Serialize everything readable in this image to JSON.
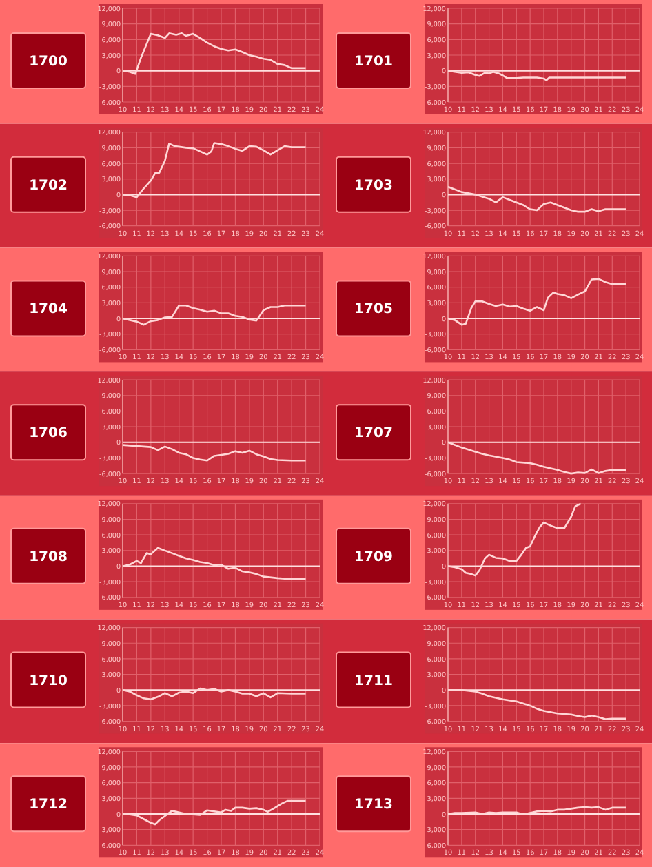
{
  "chart_data": [
    {
      "type": "line",
      "title": "1700",
      "xlim": [
        10,
        24
      ],
      "xticks": [
        10,
        11,
        12,
        13,
        14,
        15,
        16,
        17,
        18,
        19,
        20,
        21,
        22,
        23,
        24
      ],
      "ylim": [
        -6000,
        12000
      ],
      "yticks": [
        {
          "value": -6000,
          "label": "-6,000"
        },
        {
          "value": -3000,
          "label": "-3,000"
        },
        {
          "value": 0,
          "label": "0"
        },
        {
          "value": 3000,
          "label": "3,000"
        },
        {
          "value": 6000,
          "label": "6,000"
        },
        {
          "value": 9000,
          "label": "9,000"
        },
        {
          "value": 12000,
          "label": "12,000"
        }
      ],
      "grid": true,
      "ref_lines": [
        {
          "axis": "y",
          "value": 0,
          "color": "#ffe0e0"
        }
      ],
      "series": [
        {
          "color": "#ffd6d6",
          "x": [
            10,
            10.5,
            10.9,
            11.3,
            12,
            12.5,
            13,
            13.3,
            13.8,
            14.2,
            14.5,
            15,
            15.5,
            16,
            16.5,
            17,
            17.5,
            18,
            18.5,
            19,
            19.5,
            20,
            20.5,
            21,
            21.5,
            22,
            23
          ],
          "values": [
            0,
            -200,
            -600,
            2500,
            7100,
            6800,
            6300,
            7200,
            6900,
            7200,
            6700,
            7100,
            6300,
            5400,
            4700,
            4200,
            3900,
            4100,
            3600,
            3000,
            2700,
            2300,
            2100,
            1300,
            1100,
            500,
            500
          ]
        }
      ]
    },
    {
      "type": "line",
      "title": "1701",
      "xlim": [
        10,
        24
      ],
      "xticks": [
        10,
        11,
        12,
        13,
        14,
        15,
        16,
        17,
        18,
        19,
        20,
        21,
        22,
        23,
        24
      ],
      "ylim": [
        -6000,
        12000
      ],
      "yticks": [
        {
          "value": -6000,
          "label": "-6,000"
        },
        {
          "value": -3000,
          "label": "-3,000"
        },
        {
          "value": 0,
          "label": "0"
        },
        {
          "value": 3000,
          "label": "3,000"
        },
        {
          "value": 6000,
          "label": "6,000"
        },
        {
          "value": 9000,
          "label": "9,000"
        },
        {
          "value": 12000,
          "label": "12,000"
        }
      ],
      "grid": true,
      "ref_lines": [
        {
          "axis": "y",
          "value": 0,
          "color": "#ffe0e0"
        }
      ],
      "series": [
        {
          "color": "#ffd6d6",
          "x": [
            10,
            10.5,
            11,
            11.5,
            12,
            12.3,
            12.7,
            13,
            13.3,
            13.7,
            14,
            14.3,
            15,
            15.5,
            16,
            16.5,
            17,
            17.2,
            17.4,
            18,
            23
          ],
          "values": [
            0,
            -200,
            -400,
            -300,
            -800,
            -1000,
            -400,
            -500,
            -200,
            -500,
            -900,
            -1400,
            -1400,
            -1300,
            -1300,
            -1300,
            -1500,
            -1800,
            -1300,
            -1300,
            -1300
          ]
        }
      ]
    },
    {
      "type": "line",
      "title": "1702",
      "xlim": [
        10,
        24
      ],
      "xticks": [
        10,
        11,
        12,
        13,
        14,
        15,
        16,
        17,
        18,
        19,
        20,
        21,
        22,
        23,
        24
      ],
      "ylim": [
        -6000,
        12000
      ],
      "yticks": [
        {
          "value": -6000,
          "label": "-6,000"
        },
        {
          "value": -3000,
          "label": "-3,000"
        },
        {
          "value": 0,
          "label": "0"
        },
        {
          "value": 3000,
          "label": "3,000"
        },
        {
          "value": 6000,
          "label": "6,000"
        },
        {
          "value": 9000,
          "label": "9,000"
        },
        {
          "value": 12000,
          "label": "12,000"
        }
      ],
      "grid": true,
      "ref_lines": [
        {
          "axis": "y",
          "value": 0,
          "color": "#ffe0e0"
        }
      ],
      "series": [
        {
          "color": "#ffd6d6",
          "x": [
            10,
            10.5,
            11,
            11.5,
            12,
            12.3,
            12.6,
            13,
            13.3,
            13.7,
            14,
            14.5,
            15,
            15.5,
            16,
            16.3,
            16.5,
            17,
            17.5,
            18,
            18.5,
            19,
            19.5,
            20,
            20.5,
            21,
            21.5,
            22,
            23
          ],
          "values": [
            0,
            -100,
            -500,
            1200,
            2700,
            4100,
            4200,
            6500,
            9800,
            9300,
            9200,
            9000,
            8900,
            8300,
            7700,
            8300,
            9900,
            9700,
            9300,
            8800,
            8400,
            9300,
            9200,
            8500,
            7700,
            8500,
            9300,
            9100,
            9100
          ]
        }
      ]
    },
    {
      "type": "line",
      "title": "1703",
      "xlim": [
        10,
        24
      ],
      "xticks": [
        10,
        11,
        12,
        13,
        14,
        15,
        16,
        17,
        18,
        19,
        20,
        21,
        22,
        23,
        24
      ],
      "ylim": [
        -6000,
        12000
      ],
      "yticks": [
        {
          "value": -6000,
          "label": "-6,000"
        },
        {
          "value": -3000,
          "label": "-3,000"
        },
        {
          "value": 0,
          "label": "0"
        },
        {
          "value": 3000,
          "label": "3,000"
        },
        {
          "value": 6000,
          "label": "6,000"
        },
        {
          "value": 9000,
          "label": "9,000"
        },
        {
          "value": 12000,
          "label": "12,000"
        }
      ],
      "grid": true,
      "ref_lines": [
        {
          "axis": "y",
          "value": 0,
          "color": "#ffe0e0"
        }
      ],
      "series": [
        {
          "color": "#ffd6d6",
          "x": [
            10,
            11,
            12,
            13,
            13.5,
            14,
            14.5,
            15,
            15.5,
            16,
            16.5,
            17,
            17.5,
            18,
            18.5,
            19,
            19.5,
            20,
            20.5,
            21,
            21.5,
            22,
            23
          ],
          "values": [
            1500,
            500,
            0,
            -800,
            -1500,
            -500,
            -1000,
            -1500,
            -2000,
            -2800,
            -3000,
            -1800,
            -1500,
            -2000,
            -2500,
            -3000,
            -3300,
            -3300,
            -2800,
            -3200,
            -2800,
            -2800,
            -2800
          ]
        }
      ]
    },
    {
      "type": "line",
      "title": "1704",
      "xlim": [
        10,
        24
      ],
      "xticks": [
        10,
        11,
        12,
        13,
        14,
        15,
        16,
        17,
        18,
        19,
        20,
        21,
        22,
        23,
        24
      ],
      "ylim": [
        -6000,
        12000
      ],
      "yticks": [
        {
          "value": -6000,
          "label": "-6,000"
        },
        {
          "value": -3000,
          "label": "-3,000"
        },
        {
          "value": 0,
          "label": "0"
        },
        {
          "value": 3000,
          "label": "3,000"
        },
        {
          "value": 6000,
          "label": "6,000"
        },
        {
          "value": 9000,
          "label": "9,000"
        },
        {
          "value": 12000,
          "label": "12,000"
        }
      ],
      "grid": true,
      "ref_lines": [
        {
          "axis": "y",
          "value": 0,
          "color": "#ffe0e0"
        }
      ],
      "series": [
        {
          "color": "#ffd6d6",
          "x": [
            10,
            11,
            11.5,
            12,
            12.5,
            13,
            13.5,
            14,
            14.5,
            15,
            15.5,
            16,
            16.5,
            17,
            17.5,
            18,
            18.5,
            19,
            19.5,
            20,
            20.5,
            21,
            21.5,
            22,
            23
          ],
          "values": [
            0,
            -600,
            -1200,
            -500,
            -300,
            200,
            300,
            2500,
            2500,
            2000,
            1700,
            1300,
            1500,
            1000,
            1000,
            500,
            300,
            -200,
            -400,
            1600,
            2200,
            2200,
            2500,
            2500,
            2500
          ]
        }
      ]
    },
    {
      "type": "line",
      "title": "1705",
      "xlim": [
        10,
        24
      ],
      "xticks": [
        10,
        11,
        12,
        13,
        14,
        15,
        16,
        17,
        18,
        19,
        20,
        21,
        22,
        23,
        24
      ],
      "ylim": [
        -6000,
        12000
      ],
      "yticks": [
        {
          "value": -6000,
          "label": "-6,000"
        },
        {
          "value": -3000,
          "label": "-3,000"
        },
        {
          "value": 0,
          "label": "0"
        },
        {
          "value": 3000,
          "label": "3,000"
        },
        {
          "value": 6000,
          "label": "6,000"
        },
        {
          "value": 9000,
          "label": "9,000"
        },
        {
          "value": 12000,
          "label": "12,000"
        }
      ],
      "grid": true,
      "ref_lines": [
        {
          "axis": "y",
          "value": 0,
          "color": "#ffe0e0"
        }
      ],
      "series": [
        {
          "color": "#ffd6d6",
          "x": [
            10,
            10.5,
            11,
            11.3,
            11.7,
            12,
            12.5,
            13,
            13.5,
            14,
            14.5,
            15,
            15.5,
            16,
            16.5,
            17,
            17.3,
            17.7,
            18,
            18.5,
            19,
            19.5,
            20,
            20.5,
            21,
            21.5,
            22,
            23
          ],
          "values": [
            0,
            -300,
            -1200,
            -1000,
            2000,
            3300,
            3300,
            2800,
            2400,
            2700,
            2300,
            2400,
            1900,
            1500,
            2200,
            1600,
            4000,
            5000,
            4700,
            4500,
            3900,
            4600,
            5200,
            7500,
            7600,
            7000,
            6600,
            6600
          ]
        }
      ]
    },
    {
      "type": "line",
      "title": "1706",
      "xlim": [
        10,
        24
      ],
      "xticks": [
        10,
        11,
        12,
        13,
        14,
        15,
        16,
        17,
        18,
        19,
        20,
        21,
        22,
        23,
        24
      ],
      "ylim": [
        -6000,
        12000
      ],
      "yticks": [
        {
          "value": -6000,
          "label": "-6,000"
        },
        {
          "value": -3000,
          "label": "-3,000"
        },
        {
          "value": 0,
          "label": "0"
        },
        {
          "value": 3000,
          "label": "3,000"
        },
        {
          "value": 6000,
          "label": "6,000"
        },
        {
          "value": 9000,
          "label": "9,000"
        },
        {
          "value": 12000,
          "label": "12,000"
        }
      ],
      "grid": true,
      "ref_lines": [
        {
          "axis": "y",
          "value": 0,
          "color": "#ffe0e0"
        }
      ],
      "series": [
        {
          "color": "#ffd6d6",
          "x": [
            10,
            11,
            12,
            12.5,
            13,
            13.5,
            14,
            14.5,
            15,
            15.5,
            16,
            16.5,
            17,
            17.5,
            18,
            18.5,
            19,
            19.5,
            20,
            20.5,
            21,
            22,
            23
          ],
          "values": [
            -500,
            -700,
            -900,
            -1500,
            -800,
            -1300,
            -2000,
            -2300,
            -3000,
            -3300,
            -3500,
            -2600,
            -2400,
            -2200,
            -1700,
            -2000,
            -1600,
            -2300,
            -2700,
            -3200,
            -3400,
            -3500,
            -3500
          ]
        }
      ]
    },
    {
      "type": "line",
      "title": "1707",
      "xlim": [
        10,
        24
      ],
      "xticks": [
        10,
        11,
        12,
        13,
        14,
        15,
        16,
        17,
        18,
        19,
        20,
        21,
        22,
        23,
        24
      ],
      "ylim": [
        -6000,
        12000
      ],
      "yticks": [
        {
          "value": -6000,
          "label": "-6,000"
        },
        {
          "value": -3000,
          "label": "-3,000"
        },
        {
          "value": 0,
          "label": "0"
        },
        {
          "value": 3000,
          "label": "3,000"
        },
        {
          "value": 6000,
          "label": "6,000"
        },
        {
          "value": 9000,
          "label": "9,000"
        },
        {
          "value": 12000,
          "label": "12,000"
        }
      ],
      "grid": true,
      "ref_lines": [
        {
          "axis": "y",
          "value": 0,
          "color": "#ffe0e0"
        }
      ],
      "series": [
        {
          "color": "#ffd6d6",
          "x": [
            10,
            11,
            12,
            12.5,
            13,
            14,
            14.5,
            15,
            16,
            16.5,
            17,
            17.5,
            18,
            18.5,
            19,
            19.5,
            20,
            20.5,
            21,
            21.5,
            22,
            23
          ],
          "values": [
            0,
            -1000,
            -1800,
            -2200,
            -2500,
            -3000,
            -3300,
            -3800,
            -4000,
            -4300,
            -4700,
            -5000,
            -5300,
            -5700,
            -6000,
            -5800,
            -5900,
            -5200,
            -5900,
            -5500,
            -5300,
            -5300
          ]
        }
      ]
    },
    {
      "type": "line",
      "title": "1708",
      "xlim": [
        10,
        24
      ],
      "xticks": [
        10,
        11,
        12,
        13,
        14,
        15,
        16,
        17,
        18,
        19,
        20,
        21,
        22,
        23,
        24
      ],
      "ylim": [
        -6000,
        12000
      ],
      "yticks": [
        {
          "value": -6000,
          "label": "-6,000"
        },
        {
          "value": -3000,
          "label": "-3,000"
        },
        {
          "value": 0,
          "label": "0"
        },
        {
          "value": 3000,
          "label": "3,000"
        },
        {
          "value": 6000,
          "label": "6,000"
        },
        {
          "value": 9000,
          "label": "9,000"
        },
        {
          "value": 12000,
          "label": "12,000"
        }
      ],
      "grid": true,
      "ref_lines": [
        {
          "axis": "y",
          "value": 0,
          "color": "#ffe0e0"
        }
      ],
      "series": [
        {
          "color": "#ffd6d6",
          "x": [
            10,
            10.5,
            11,
            11.3,
            11.7,
            12,
            12.5,
            13,
            13.5,
            14,
            14.5,
            15,
            15.5,
            16,
            16.5,
            17,
            17.5,
            18,
            18.5,
            19,
            19.5,
            20,
            21,
            22,
            23
          ],
          "values": [
            0,
            300,
            1000,
            600,
            2500,
            2300,
            3500,
            3000,
            2500,
            2000,
            1500,
            1200,
            800,
            600,
            200,
            300,
            -500,
            -300,
            -1000,
            -1200,
            -1500,
            -2000,
            -2300,
            -2500,
            -2500
          ]
        }
      ]
    },
    {
      "type": "line",
      "title": "1709",
      "xlim": [
        10,
        24
      ],
      "xticks": [
        10,
        11,
        12,
        13,
        14,
        15,
        16,
        17,
        18,
        19,
        20,
        21,
        22,
        23,
        24
      ],
      "ylim": [
        -6000,
        12000
      ],
      "yticks": [
        {
          "value": -6000,
          "label": "-6,000"
        },
        {
          "value": -3000,
          "label": "-3,000"
        },
        {
          "value": 0,
          "label": "0"
        },
        {
          "value": 3000,
          "label": "3,000"
        },
        {
          "value": 6000,
          "label": "6,000"
        },
        {
          "value": 9000,
          "label": "9,000"
        },
        {
          "value": 12000,
          "label": "12,000"
        }
      ],
      "grid": true,
      "ref_lines": [
        {
          "axis": "y",
          "value": 0,
          "color": "#ffe0e0"
        }
      ],
      "series": [
        {
          "color": "#ffd6d6",
          "x": [
            10,
            10.5,
            11,
            11.3,
            11.7,
            12,
            12.3,
            12.7,
            13,
            13.5,
            14,
            14.5,
            15,
            15.3,
            15.7,
            16,
            16.3,
            16.7,
            17,
            17.5,
            18,
            18.5,
            19,
            19.3,
            19.7
          ],
          "values": [
            0,
            -200,
            -600,
            -1300,
            -1500,
            -1800,
            -800,
            1500,
            2200,
            1600,
            1500,
            1000,
            1000,
            2000,
            3500,
            3800,
            5500,
            7500,
            8400,
            7800,
            7300,
            7300,
            9500,
            11500,
            12000
          ]
        }
      ]
    },
    {
      "type": "line",
      "title": "1710",
      "xlim": [
        10,
        24
      ],
      "xticks": [
        10,
        11,
        12,
        13,
        14,
        15,
        16,
        17,
        18,
        19,
        20,
        21,
        22,
        23,
        24
      ],
      "ylim": [
        -6000,
        12000
      ],
      "yticks": [
        {
          "value": -6000,
          "label": "-6,000"
        },
        {
          "value": -3000,
          "label": "-3,000"
        },
        {
          "value": 0,
          "label": "0"
        },
        {
          "value": 3000,
          "label": "3,000"
        },
        {
          "value": 6000,
          "label": "6,000"
        },
        {
          "value": 9000,
          "label": "9,000"
        },
        {
          "value": 12000,
          "label": "12,000"
        }
      ],
      "grid": true,
      "ref_lines": [
        {
          "axis": "y",
          "value": 0,
          "color": "#ffe0e0"
        }
      ],
      "series": [
        {
          "color": "#ffd6d6",
          "x": [
            10,
            10.5,
            11,
            11.5,
            12,
            12.5,
            13,
            13.5,
            14,
            14.5,
            15,
            15.5,
            16,
            16.5,
            17,
            17.5,
            18,
            18.5,
            19,
            19.5,
            20,
            20.5,
            21,
            22,
            23
          ],
          "values": [
            0,
            -300,
            -1000,
            -1600,
            -1800,
            -1300,
            -600,
            -1200,
            -500,
            -300,
            -600,
            300,
            0,
            200,
            -300,
            0,
            -300,
            -700,
            -700,
            -1200,
            -600,
            -1400,
            -600,
            -700,
            -700
          ]
        }
      ]
    },
    {
      "type": "line",
      "title": "1711",
      "xlim": [
        10,
        24
      ],
      "xticks": [
        10,
        11,
        12,
        13,
        14,
        15,
        16,
        17,
        18,
        19,
        20,
        21,
        22,
        23,
        24
      ],
      "ylim": [
        -6000,
        12000
      ],
      "yticks": [
        {
          "value": -6000,
          "label": "-6,000"
        },
        {
          "value": -3000,
          "label": "-3,000"
        },
        {
          "value": 0,
          "label": "0"
        },
        {
          "value": 3000,
          "label": "3,000"
        },
        {
          "value": 6000,
          "label": "6,000"
        },
        {
          "value": 9000,
          "label": "9,000"
        },
        {
          "value": 12000,
          "label": "12,000"
        }
      ],
      "grid": true,
      "ref_lines": [
        {
          "axis": "y",
          "value": 0,
          "color": "#ffe0e0"
        }
      ],
      "series": [
        {
          "color": "#ffd6d6",
          "x": [
            10,
            11,
            12,
            12.5,
            13,
            14,
            15,
            16,
            16.5,
            17,
            18,
            19,
            19.5,
            20,
            20.5,
            21,
            21.5,
            22,
            23
          ],
          "values": [
            0,
            0,
            -300,
            -700,
            -1200,
            -1800,
            -2200,
            -3000,
            -3600,
            -4000,
            -4500,
            -4700,
            -5000,
            -5200,
            -4900,
            -5200,
            -5600,
            -5500,
            -5500
          ]
        }
      ]
    },
    {
      "type": "line",
      "title": "1712",
      "xlim": [
        10,
        24
      ],
      "xticks": [
        10,
        11,
        12,
        13,
        14,
        15,
        16,
        17,
        18,
        19,
        20,
        21,
        22,
        23,
        24
      ],
      "ylim": [
        -6000,
        12000
      ],
      "yticks": [
        {
          "value": -6000,
          "label": "-6,000"
        },
        {
          "value": -3000,
          "label": "-3,000"
        },
        {
          "value": 0,
          "label": "0"
        },
        {
          "value": 3000,
          "label": "3,000"
        },
        {
          "value": 6000,
          "label": "6,000"
        },
        {
          "value": 9000,
          "label": "9,000"
        },
        {
          "value": 12000,
          "label": "12,000"
        }
      ],
      "grid": true,
      "ref_lines": [
        {
          "axis": "y",
          "value": 0,
          "color": "#ffe0e0"
        }
      ],
      "series": [
        {
          "color": "#ffd6d6",
          "x": [
            10,
            10.5,
            11,
            11.5,
            12,
            12.3,
            12.6,
            13,
            13.5,
            14,
            14.5,
            15,
            15.5,
            16,
            16.5,
            17,
            17.3,
            17.7,
            18,
            18.5,
            19,
            19.5,
            20,
            20.3,
            20.7,
            21,
            21.3,
            21.7,
            22,
            23
          ],
          "values": [
            0,
            -100,
            -300,
            -1000,
            -1700,
            -2000,
            -1200,
            -400,
            600,
            300,
            0,
            -100,
            -200,
            700,
            500,
            300,
            800,
            600,
            1200,
            1200,
            1000,
            1100,
            800,
            400,
            1000,
            1500,
            2000,
            2500,
            2500,
            2500
          ]
        }
      ]
    },
    {
      "type": "line",
      "title": "1713",
      "xlim": [
        10,
        24
      ],
      "xticks": [
        10,
        11,
        12,
        13,
        14,
        15,
        16,
        17,
        18,
        19,
        20,
        21,
        22,
        23,
        24
      ],
      "ylim": [
        -6000,
        12000
      ],
      "yticks": [
        {
          "value": -6000,
          "label": "-6,000"
        },
        {
          "value": -3000,
          "label": "-3,000"
        },
        {
          "value": 0,
          "label": "0"
        },
        {
          "value": 3000,
          "label": "3,000"
        },
        {
          "value": 6000,
          "label": "6,000"
        },
        {
          "value": 9000,
          "label": "9,000"
        },
        {
          "value": 12000,
          "label": "12,000"
        }
      ],
      "grid": true,
      "ref_lines": [
        {
          "axis": "y",
          "value": 0,
          "color": "#ffe0e0"
        }
      ],
      "series": [
        {
          "color": "#ffd6d6",
          "x": [
            10,
            10.5,
            11,
            12,
            12.5,
            13,
            13.5,
            14,
            15,
            15.5,
            16,
            16.5,
            17,
            17.5,
            18,
            18.5,
            19,
            19.5,
            20,
            20.5,
            21,
            21.5,
            22,
            23
          ],
          "values": [
            0,
            200,
            200,
            300,
            0,
            300,
            200,
            300,
            300,
            -100,
            200,
            500,
            600,
            500,
            800,
            800,
            1000,
            1200,
            1300,
            1200,
            1300,
            800,
            1200,
            1200
          ]
        }
      ]
    }
  ]
}
